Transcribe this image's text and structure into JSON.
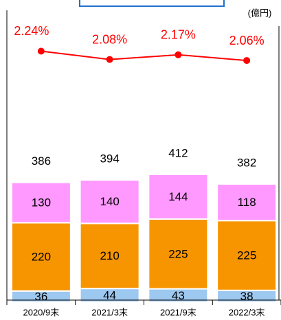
{
  "chart_data": {
    "type": "stacked_bar_line",
    "unit_label": "(億円)",
    "categories": [
      "2020/9末",
      "2021/3末",
      "2021/9末",
      "2022/3末"
    ],
    "series": [
      {
        "color": "#9dc8f0",
        "values": [
          36,
          44,
          43,
          38
        ]
      },
      {
        "color": "#f79500",
        "values": [
          220,
          210,
          225,
          225
        ]
      },
      {
        "color": "#ff99ff",
        "values": [
          130,
          140,
          144,
          118
        ]
      },
      {
        "color": "#ff0000",
        "axis": "y2",
        "type": "line",
        "values": [
          2.24,
          2.08,
          2.17,
          2.06
        ],
        "value_labels": [
          "2.24%",
          "2.08%",
          "2.17%",
          "2.06%"
        ]
      }
    ],
    "totals": [
      386,
      394,
      412,
      382
    ],
    "ylim": [
      0,
      970
    ],
    "y2lim": [
      -2.6,
      3.2
    ]
  }
}
